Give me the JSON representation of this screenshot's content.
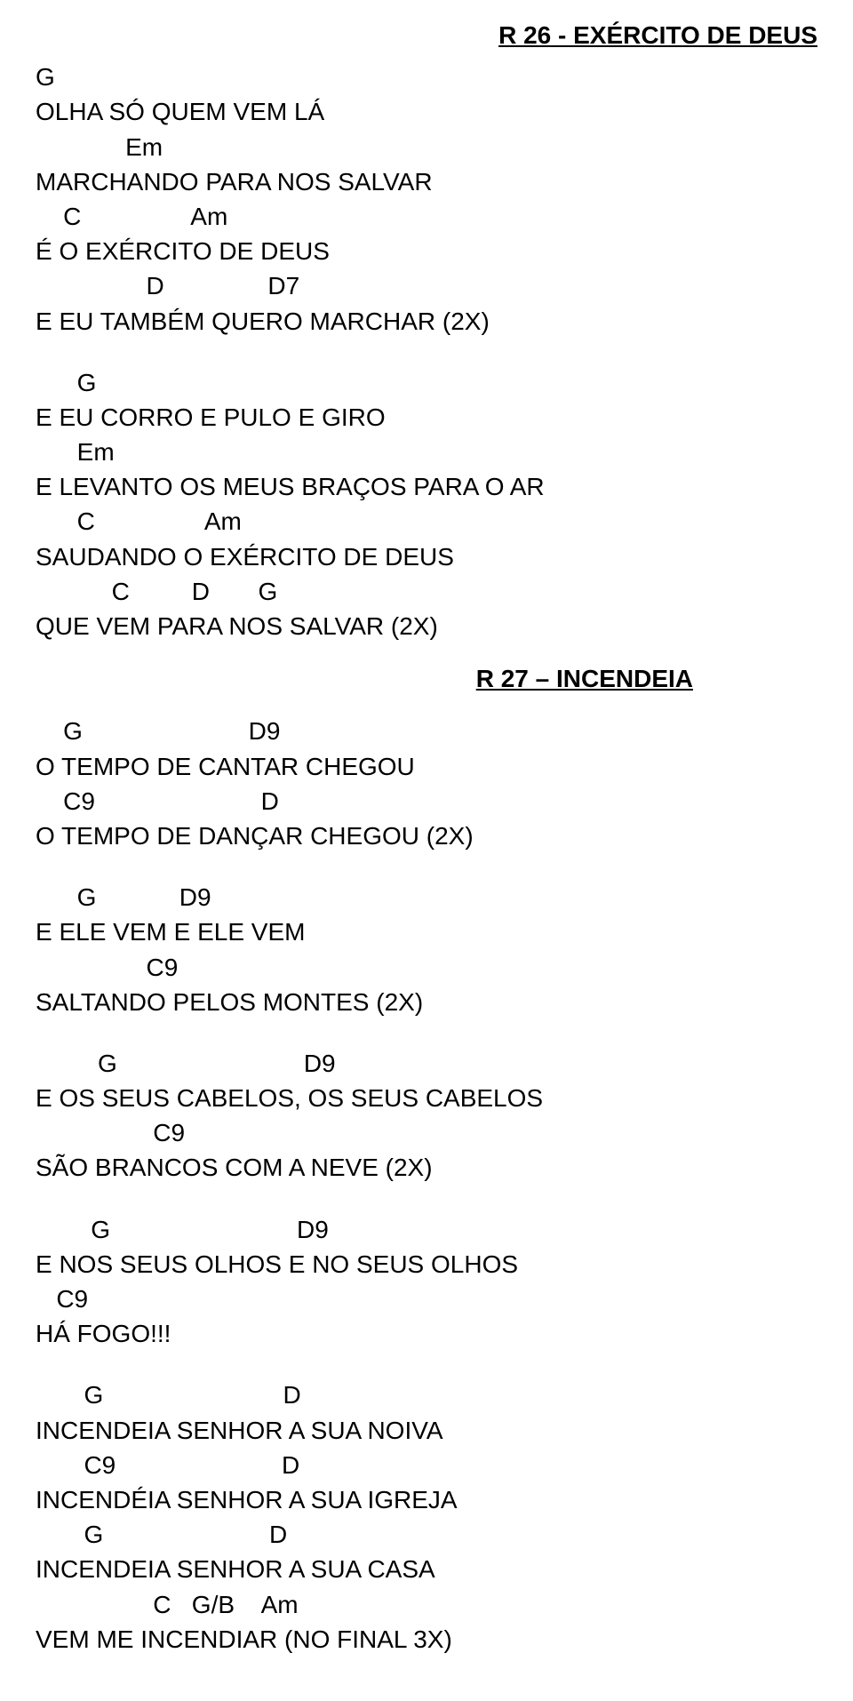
{
  "header": {
    "title": "R 26 - EXÉRCITO DE DEUS"
  },
  "verse1": {
    "l1": "G",
    "l2": "OLHA SÓ QUEM VEM LÁ",
    "l3": "             Em",
    "l4": "MARCHANDO PARA NOS SALVAR",
    "l5": "    C                Am",
    "l6": "É O EXÉRCITO DE DEUS",
    "l7": "                D               D7",
    "l8": "E EU TAMBÉM QUERO MARCHAR (2X)"
  },
  "verse2": {
    "l1": "      G",
    "l2": "E EU CORRO E PULO E GIRO",
    "l3": "      Em",
    "l4": "E LEVANTO OS MEUS BRAÇOS PARA O AR",
    "l5": "      C                Am",
    "l6": "SAUDANDO O EXÉRCITO DE DEUS",
    "l7": "           C         D       G",
    "l8": "QUE VEM PARA NOS SALVAR (2X)"
  },
  "subtitle": "R 27 – INCENDEIA",
  "verse3": {
    "l1": "    G                        D9",
    "l2": "O TEMPO DE CANTAR CHEGOU",
    "l3": "    C9                        D",
    "l4": "O TEMPO DE DANÇAR CHEGOU (2X)"
  },
  "verse4": {
    "l1": "      G            D9",
    "l2": "E ELE VEM E ELE VEM",
    "l3": "                C9",
    "l4": "SALTANDO PELOS MONTES (2X)"
  },
  "verse5": {
    "l1": "         G                           D9",
    "l2": "E OS SEUS CABELOS, OS SEUS CABELOS",
    "l3": "                 C9",
    "l4": "SÃO BRANCOS COM A NEVE (2X)"
  },
  "verse6": {
    "l1": "        G                           D9",
    "l2": "E NOS SEUS OLHOS E NO SEUS OLHOS",
    "l3": "   C9",
    "l4": "HÁ FOGO!!!"
  },
  "verse7": {
    "l1": "       G                          D",
    "l2": "INCENDEIA SENHOR A SUA NOIVA",
    "l3": "       C9                        D",
    "l4": "INCENDÉIA SENHOR A SUA IGREJA",
    "l5": "       G                        D",
    "l6": "INCENDEIA SENHOR A SUA CASA",
    "l7": "                 C   G/B    Am",
    "l8": "VEM ME INCENDIAR (NO FINAL 3X)"
  }
}
